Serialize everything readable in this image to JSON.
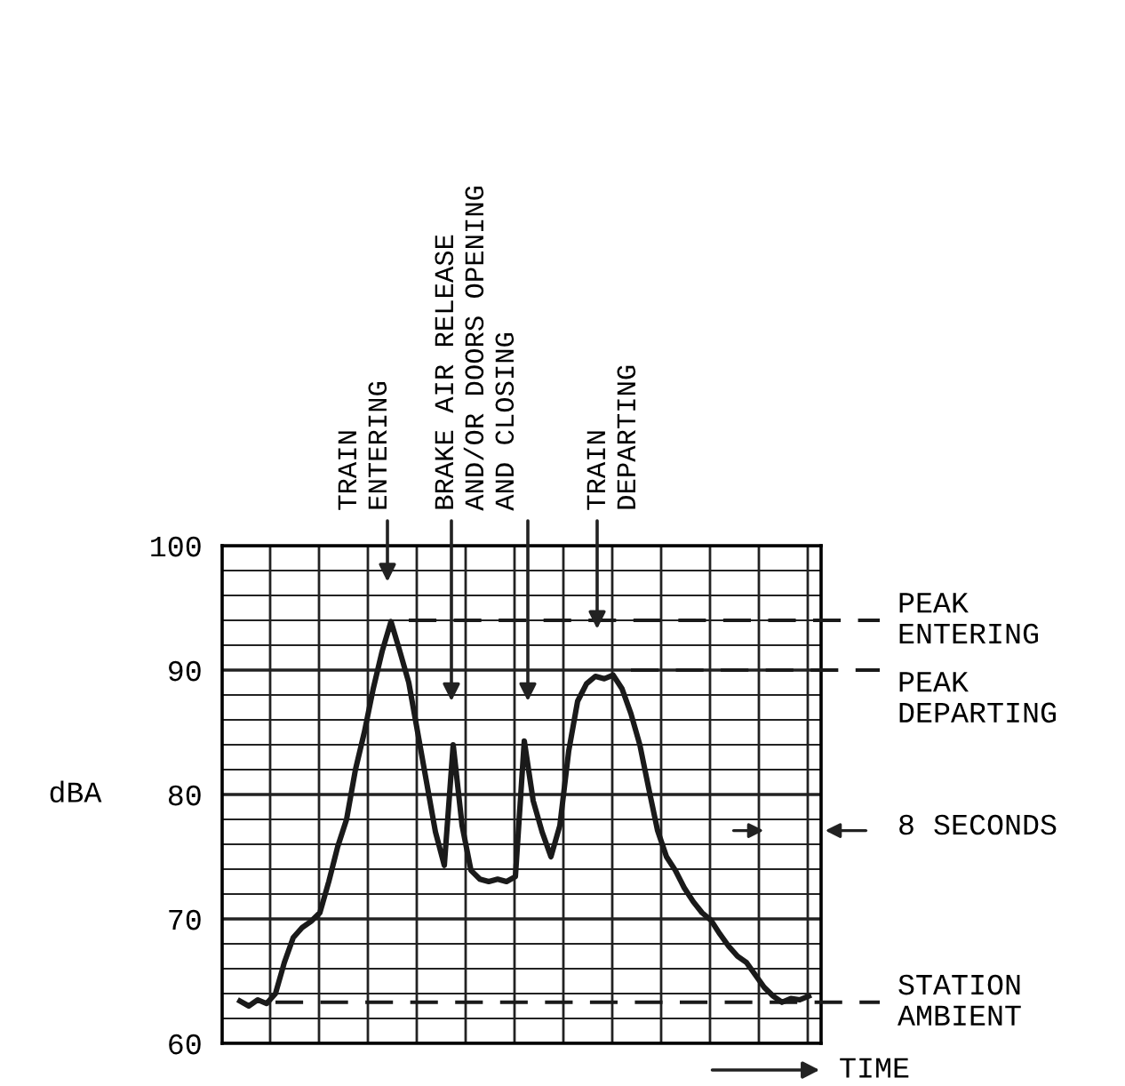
{
  "chart_data": {
    "type": "line",
    "ylabel": "dBA",
    "tick_labels": "y",
    "grid": true,
    "color": "#1a1a1a",
    "categories": [
      null,
      null,
      null,
      null,
      null,
      null,
      null,
      null,
      null,
      null,
      null,
      null,
      null,
      null,
      null,
      null,
      null,
      null,
      null,
      null,
      null,
      null,
      null,
      null,
      null,
      null,
      null,
      null,
      null,
      null,
      null,
      null,
      null,
      null,
      null,
      null,
      null,
      null,
      null,
      null,
      null,
      null,
      null,
      null,
      null,
      null,
      null,
      null,
      null,
      null,
      null,
      null,
      null,
      null,
      null,
      null,
      null,
      null,
      null,
      null,
      null,
      null,
      null,
      null,
      null
    ],
    "values": [
      63.4,
      63.0,
      63.5,
      63.2,
      64.0,
      66.5,
      68.5,
      69.3,
      69.8,
      70.5,
      73.0,
      75.8,
      78.0,
      82.0,
      85.0,
      88.5,
      91.5,
      93.9,
      91.5,
      89.0,
      85.0,
      81.0,
      77.0,
      74.3,
      84.0,
      77.5,
      73.9,
      73.2,
      73.0,
      73.2,
      73.0,
      73.4,
      84.3,
      79.5,
      77.0,
      75.0,
      77.5,
      83.5,
      87.5,
      88.9,
      89.5,
      89.3,
      89.6,
      88.5,
      86.5,
      84.0,
      80.5,
      77.1,
      75.0,
      73.9,
      72.5,
      71.4,
      70.5,
      69.9,
      68.8,
      67.8,
      67.0,
      66.5,
      65.5,
      64.5,
      63.8,
      63.3,
      63.6,
      63.5,
      63.8
    ],
    "ylim": [
      60,
      100
    ],
    "yticks": [
      60,
      {
        "value": 62,
        "label": null
      },
      {
        "value": 64,
        "label": null
      },
      {
        "value": 66,
        "label": null
      },
      {
        "value": 68,
        "label": null
      },
      70,
      {
        "value": 72,
        "label": null
      },
      {
        "value": 74,
        "label": null
      },
      {
        "value": 76,
        "label": null
      },
      {
        "value": 78,
        "label": null
      },
      80,
      {
        "value": 82,
        "label": null
      },
      {
        "value": 84,
        "label": null
      },
      {
        "value": 86,
        "label": null
      },
      {
        "value": 88,
        "label": null
      },
      90,
      {
        "value": 92,
        "label": null
      },
      {
        "value": 94,
        "label": null
      },
      {
        "value": 96,
        "label": null
      },
      {
        "value": 98,
        "label": null
      },
      100
    ],
    "ref_lines": [
      {
        "axis": "y",
        "value": 94,
        "label": "PEAK\nENTERING",
        "line_style": "dashed",
        "color": "#1a1a1a"
      },
      {
        "axis": "y",
        "value": 90,
        "label": "PEAK\nDEPARTING",
        "line_style": "dashed",
        "color": "#1a1a1a"
      },
      {
        "axis": "y",
        "value": 63.3,
        "label": "STATION\nAMBIENT",
        "line_style": "dashed",
        "color": "#1a1a1a"
      }
    ],
    "annotations": [
      "TRAIN\nENTERING",
      "BRAKE AIR RELEASE\nAND/OR DOORS OPENING\nAND CLOSING",
      "TRAIN\nDEPARTING",
      "8 SECONDS",
      "TIME"
    ]
  }
}
